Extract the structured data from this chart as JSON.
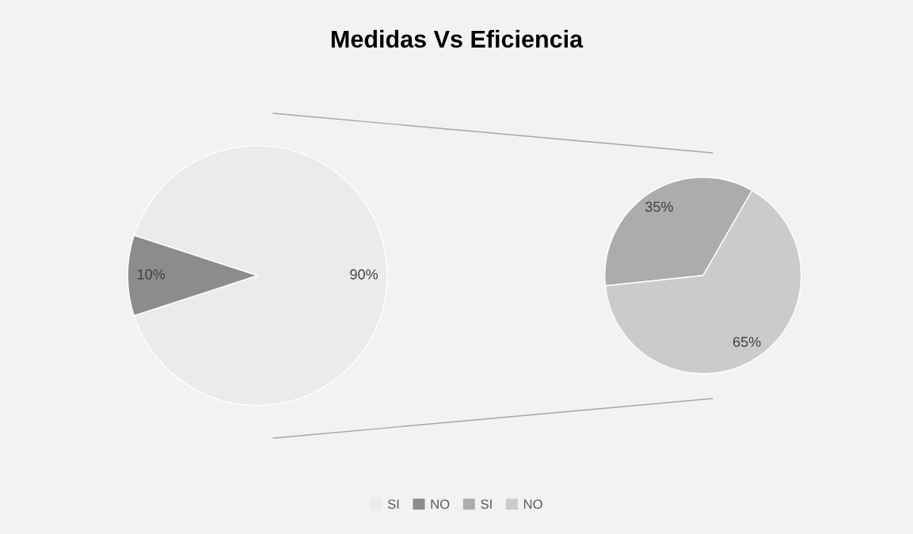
{
  "chart_data": [
    {
      "type": "pie",
      "title": "Medidas Vs Eficiencia",
      "categories": [
        "SI",
        "NO"
      ],
      "values": [
        90,
        10
      ],
      "colors": [
        "#ebebeb",
        "#8c8c8c"
      ],
      "value_labels": [
        "90%",
        "10%"
      ],
      "legend": "bottom"
    },
    {
      "type": "pie",
      "categories": [
        "SI",
        "NO"
      ],
      "values": [
        35,
        65
      ],
      "colors": [
        "#acacac",
        "#cbcbcb"
      ],
      "value_labels": [
        "35%",
        "65%"
      ],
      "legend": "bottom"
    }
  ]
}
